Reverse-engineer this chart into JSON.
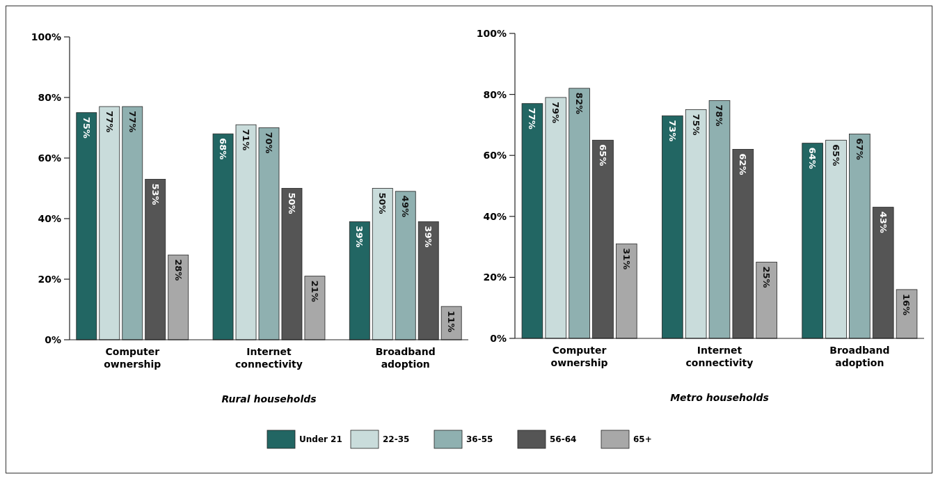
{
  "chart_data": [
    {
      "type": "bar",
      "xlabel": "Rural households",
      "categories": [
        "Computer ownership",
        "Internet connectivity",
        "Broadband adoption"
      ],
      "ylim": [
        0,
        100
      ],
      "yticks": [
        {
          "value": 0,
          "label": "0%"
        },
        {
          "value": 20,
          "label": "20%"
        },
        {
          "value": 40,
          "label": "40%"
        },
        {
          "value": 60,
          "label": "60%"
        },
        {
          "value": 80,
          "label": "80%"
        },
        {
          "value": 100,
          "label": "100%"
        }
      ],
      "legend": "bottom",
      "series": [
        {
          "name": "Under 21",
          "color": "#226663",
          "values": [
            75,
            68,
            39
          ],
          "value_labels": [
            "75%",
            "68%",
            "39%"
          ]
        },
        {
          "name": "22-35",
          "color": "#c9dcdb",
          "values": [
            77,
            71,
            50
          ],
          "value_labels": [
            "77%",
            "71%",
            "50%"
          ]
        },
        {
          "name": "36-55",
          "color": "#8fb0b0",
          "values": [
            77,
            70,
            49
          ],
          "value_labels": [
            "77%",
            "70%",
            "49%"
          ]
        },
        {
          "name": "56-64",
          "color": "#555555",
          "values": [
            53,
            50,
            39
          ],
          "value_labels": [
            "53%",
            "50%",
            "39%"
          ]
        },
        {
          "name": "65+",
          "color": "#a8a8a8",
          "values": [
            28,
            21,
            11
          ],
          "value_labels": [
            "28%",
            "21%",
            "11%"
          ]
        }
      ]
    },
    {
      "type": "bar",
      "xlabel": "Metro households",
      "categories": [
        "Computer ownership",
        "Internet connectivity",
        "Broadband adoption"
      ],
      "ylim": [
        0,
        100
      ],
      "yticks": [
        {
          "value": 0,
          "label": "0%"
        },
        {
          "value": 20,
          "label": "20%"
        },
        {
          "value": 40,
          "label": "40%"
        },
        {
          "value": 60,
          "label": "60%"
        },
        {
          "value": 80,
          "label": "80%"
        },
        {
          "value": 100,
          "label": "100%"
        }
      ],
      "series": [
        {
          "color": "#226663",
          "values": [
            77,
            73,
            64
          ],
          "value_labels": [
            "77%",
            "73%",
            "64%"
          ]
        },
        {
          "color": "#c9dcdb",
          "values": [
            79,
            75,
            65
          ],
          "value_labels": [
            "79%",
            "75%",
            "65%"
          ]
        },
        {
          "color": "#8fb0b0",
          "values": [
            82,
            78,
            67
          ],
          "value_labels": [
            "82%",
            "78%",
            "67%"
          ]
        },
        {
          "color": "#555555",
          "values": [
            65,
            62,
            43
          ],
          "value_labels": [
            "65%",
            "62%",
            "43%"
          ]
        },
        {
          "color": "#a8a8a8",
          "values": [
            31,
            25,
            16
          ],
          "value_labels": [
            "31%",
            "25%",
            "16%"
          ]
        }
      ]
    }
  ]
}
